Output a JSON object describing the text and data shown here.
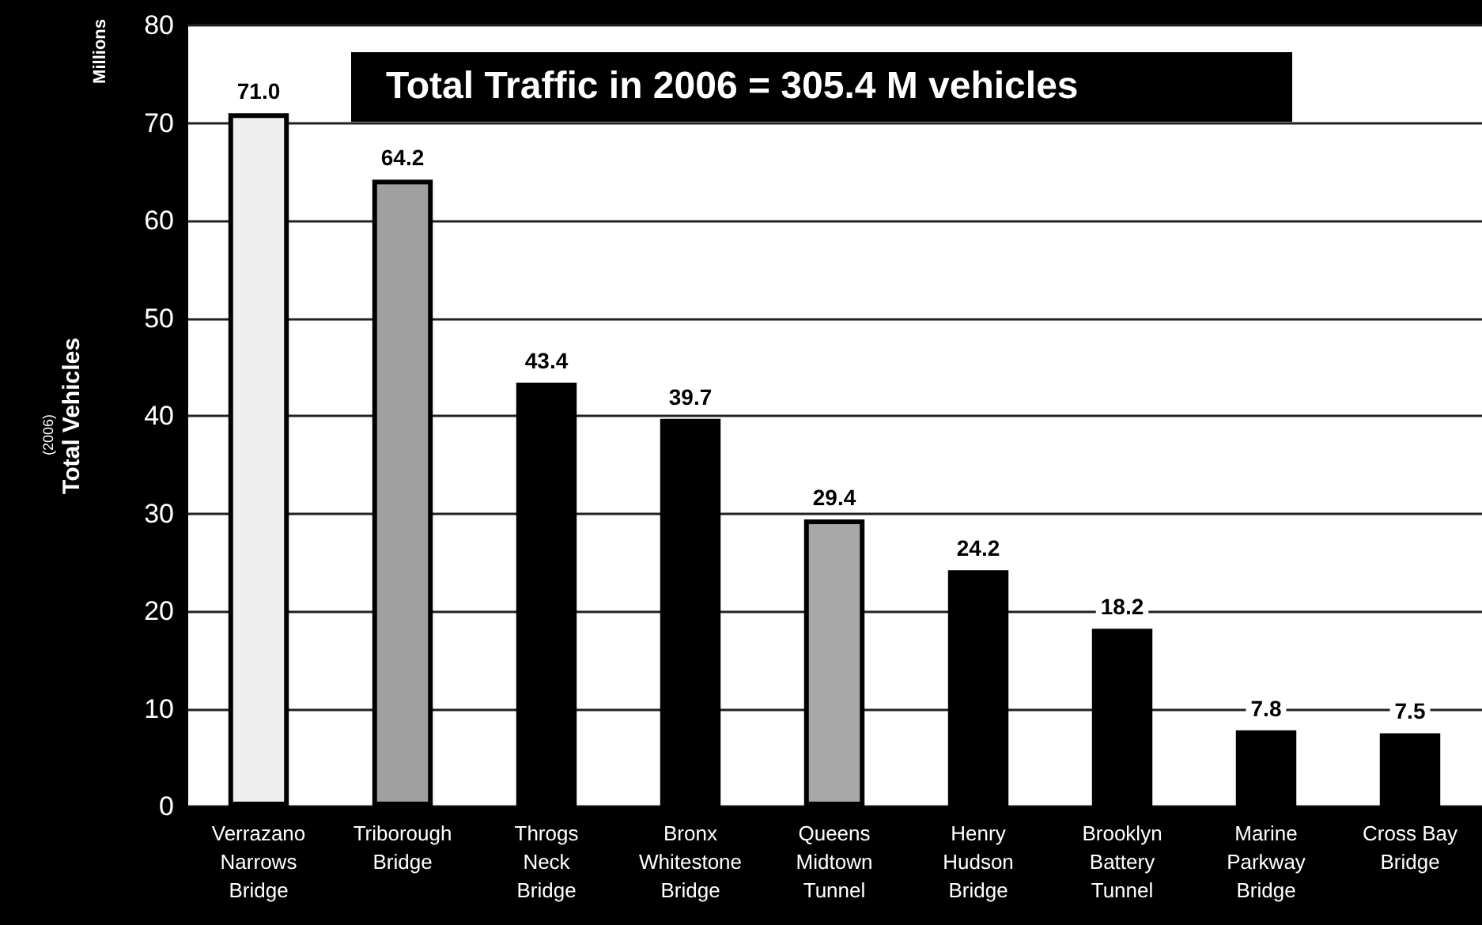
{
  "chart_data": {
    "type": "bar",
    "ylabel": "Total Vehicles",
    "annotations": [
      "Total Traffic in 2006 = 305.4 M vehicles",
      "(2006)",
      "Millions"
    ],
    "categories": [
      "Verrazano\nNarrows\nBridge",
      "Triborough\nBridge",
      "Throgs\nNeck\nBridge",
      "Bronx\nWhitestone\nBridge",
      "Queens\nMidtown\nTunnel",
      "Henry\nHudson\nBridge",
      "Brooklyn\nBattery\nTunnel",
      "Marine\nParkway\nBridge",
      "Cross Bay\nBridge"
    ],
    "values": [
      71.0,
      64.2,
      43.4,
      39.7,
      29.4,
      24.2,
      18.2,
      7.8,
      7.5
    ],
    "colors": [
      "#eeeeee",
      "#a0a0a0",
      "#000000",
      "#000000",
      "#a8a8a8",
      "#000000",
      "#000000",
      "#000000",
      "#000000"
    ],
    "ylim": [
      0,
      80
    ],
    "yticks": [
      0,
      10,
      20,
      30,
      40,
      50,
      60,
      70,
      80
    ],
    "value_labels": [
      "71.0",
      "64.2",
      "43.4",
      "39.7",
      "29.4",
      "24.2",
      "18.2",
      "7.8",
      "7.5"
    ],
    "grid": "y"
  }
}
